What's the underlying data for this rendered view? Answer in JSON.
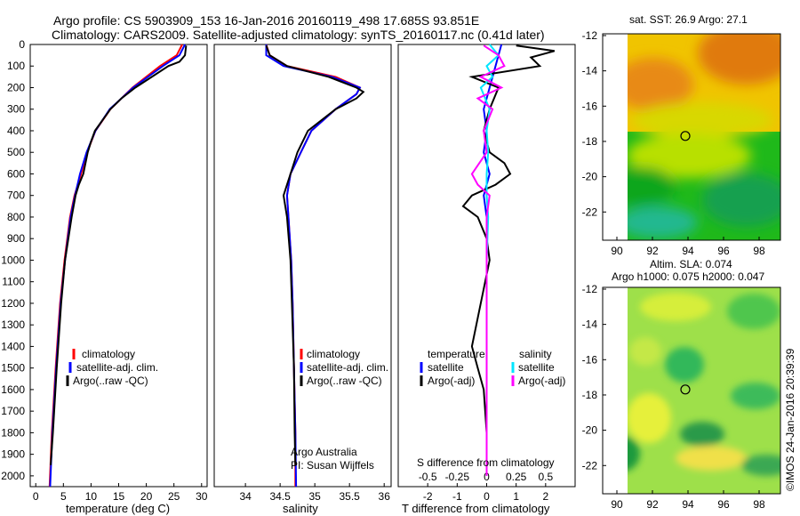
{
  "header": {
    "line1": "Argo profile: CS 5903909_153 16-Jan-2016 20160119_498 17.685S 93.851E",
    "line2": "Climatology: CARS2009. Satellite-adjusted climatology: synTS_20160117.nc (0.41d later)"
  },
  "colors": {
    "climatology": "#ff0000",
    "satellite": "#0000ff",
    "argo": "#000000",
    "sal_satellite": "#00e5ff",
    "sal_argo": "#ff00ff"
  },
  "depth_axis": {
    "min": 0,
    "max": 2050,
    "ticks": [
      0,
      100,
      200,
      300,
      400,
      500,
      600,
      700,
      800,
      900,
      1000,
      1100,
      1200,
      1300,
      1400,
      1500,
      1600,
      1700,
      1800,
      1900,
      2000
    ]
  },
  "legend_profiles": [
    "climatology",
    "satellite-adj. clim.",
    "Argo(..raw -QC)"
  ],
  "legend_diff": {
    "head_t": "temperature",
    "head_s": "salinity",
    "satellite": "satellite",
    "argo": "Argo(-adj)"
  },
  "salinity_note": {
    "line1": "Argo Australia",
    "line2": "PI: Susan Wijffels"
  },
  "chart_data": [
    {
      "type": "line",
      "xlabel": "temperature (deg C)",
      "xlim": [
        -1,
        31
      ],
      "xticks": [
        0,
        5,
        10,
        15,
        20,
        25,
        30
      ],
      "ylim": [
        2050,
        0
      ],
      "series": [
        {
          "name": "climatology",
          "depth": [
            0,
            50,
            100,
            200,
            300,
            400,
            500,
            600,
            700,
            800,
            1000,
            1200,
            1500,
            1800,
            2050
          ],
          "values": [
            26.5,
            25.5,
            22.5,
            17.5,
            13.5,
            10.8,
            9.3,
            8.2,
            7.0,
            6.2,
            5.2,
            4.4,
            3.6,
            2.9,
            2.5
          ]
        },
        {
          "name": "satellite-adj. clim.",
          "depth": [
            0,
            50,
            100,
            200,
            300,
            400,
            500,
            600,
            700,
            800,
            1000,
            1200,
            1500,
            1800,
            2050
          ],
          "values": [
            27.0,
            26.0,
            23.0,
            17.6,
            13.4,
            10.8,
            9.2,
            8.0,
            7.1,
            6.3,
            5.3,
            4.5,
            3.7,
            3.0,
            2.6
          ]
        },
        {
          "name": "Argo(..raw -QC)",
          "depth": [
            5,
            50,
            80,
            100,
            150,
            200,
            250,
            300,
            400,
            450,
            500,
            550,
            600,
            650,
            700,
            800,
            1000,
            1200,
            1500,
            1800,
            1950
          ],
          "values": [
            27.2,
            27.0,
            26.0,
            24.0,
            21.0,
            18.0,
            15.5,
            13.5,
            10.7,
            10.0,
            9.4,
            9.0,
            8.6,
            7.8,
            7.2,
            6.5,
            5.3,
            4.6,
            3.8,
            3.1,
            2.7
          ]
        }
      ]
    },
    {
      "type": "line",
      "xlabel": "salinity",
      "xlim": [
        33.55,
        36.1
      ],
      "xticks": [
        34,
        34.5,
        35,
        35.5,
        36
      ],
      "ylim": [
        2050,
        0
      ],
      "series": [
        {
          "name": "climatology",
          "depth": [
            0,
            50,
            100,
            150,
            200,
            230,
            300,
            400,
            500,
            600,
            700,
            800,
            1000,
            1200,
            1500,
            1800,
            2050
          ],
          "values": [
            34.3,
            34.35,
            34.6,
            35.3,
            35.65,
            35.6,
            35.3,
            34.95,
            34.8,
            34.65,
            34.6,
            34.62,
            34.66,
            34.68,
            34.7,
            34.72,
            34.72
          ]
        },
        {
          "name": "satellite-adj. clim.",
          "depth": [
            0,
            50,
            100,
            150,
            200,
            230,
            300,
            400,
            500,
            600,
            700,
            800,
            1000,
            1200,
            1500,
            1800,
            2050
          ],
          "values": [
            34.3,
            34.3,
            34.55,
            35.25,
            35.65,
            35.6,
            35.3,
            34.95,
            34.8,
            34.65,
            34.6,
            34.62,
            34.66,
            34.68,
            34.7,
            34.72,
            34.73
          ]
        },
        {
          "name": "Argo(..raw -QC)",
          "depth": [
            5,
            50,
            100,
            150,
            200,
            220,
            250,
            300,
            400,
            500,
            600,
            650,
            700,
            800,
            1000,
            1200,
            1500,
            1800,
            1950
          ],
          "values": [
            34.3,
            34.35,
            34.6,
            35.2,
            35.6,
            35.7,
            35.6,
            35.3,
            34.9,
            34.75,
            34.65,
            34.6,
            34.55,
            34.6,
            34.65,
            34.67,
            34.7,
            34.71,
            34.72
          ]
        }
      ]
    },
    {
      "type": "line",
      "xlabel": "T difference from climatology",
      "xlabel_top": "S difference from climatology",
      "xlim": [
        -3,
        3
      ],
      "xticks": [
        -2,
        -1,
        0,
        1,
        2
      ],
      "xticks_top": [
        -0.5,
        -0.25,
        0,
        0.25,
        0.5
      ],
      "ylim": [
        2050,
        0
      ],
      "series": [
        {
          "name": "temperature satellite",
          "depth": [
            0,
            50,
            100,
            200,
            300,
            400,
            500,
            600,
            700,
            800,
            1000,
            1400,
            2000
          ],
          "values": [
            0.5,
            0.4,
            0.3,
            0.1,
            -0.1,
            0.0,
            -0.1,
            0.1,
            -0.1,
            0.0,
            0.0,
            0.0,
            0.0
          ]
        },
        {
          "name": "temperature Argo(-adj)",
          "depth": [
            5,
            30,
            60,
            100,
            150,
            200,
            300,
            400,
            500,
            550,
            600,
            650,
            700,
            750,
            800,
            900,
            1000,
            1400,
            1500,
            1600,
            1800,
            1950
          ],
          "values": [
            1.0,
            2.3,
            1.5,
            1.8,
            -0.5,
            0.4,
            0.1,
            -0.1,
            0.1,
            0.6,
            0.8,
            0.3,
            -0.5,
            -0.8,
            -0.3,
            0.0,
            0.1,
            -0.5,
            -0.3,
            -0.1,
            0.0,
            0.0
          ]
        },
        {
          "name": "salinity satellite",
          "depth": [
            0,
            50,
            100,
            150,
            200,
            300,
            400,
            500,
            600,
            700,
            800,
            1000,
            1400,
            2000
          ],
          "values": [
            0.1,
            0.4,
            0.0,
            0.2,
            -0.2,
            0.1,
            0.0,
            0.05,
            0.0,
            0.0,
            0.05,
            0.0,
            0.0,
            0.0
          ]
        },
        {
          "name": "salinity Argo(-adj)",
          "depth": [
            5,
            50,
            100,
            150,
            200,
            250,
            300,
            400,
            500,
            600,
            650,
            700,
            800,
            1000,
            1400,
            2000
          ],
          "values": [
            -0.1,
            0.4,
            0.6,
            -0.2,
            0.5,
            -0.3,
            0.2,
            -0.1,
            0.0,
            -0.5,
            -0.3,
            0.1,
            0.0,
            0.0,
            0.0,
            0.0
          ]
        }
      ]
    },
    {
      "type": "heatmap",
      "title": "sat. SST: 26.9  Argo: 27.1",
      "xlim": [
        89.2,
        99.2
      ],
      "ylim": [
        -23.6,
        -11.9
      ],
      "xticks": [
        90,
        92,
        94,
        96,
        98
      ],
      "yticks": [
        -12,
        -14,
        -16,
        -18,
        -20,
        -22
      ],
      "marker": [
        93.85,
        -17.69
      ]
    },
    {
      "type": "heatmap",
      "title": "Altim. SLA: 0.074",
      "subtitle": "Argo h1000: 0.075 h2000: 0.047",
      "xlim": [
        89.2,
        99.2
      ],
      "ylim": [
        -23.6,
        -11.9
      ],
      "xticks": [
        90,
        92,
        94,
        96,
        98
      ],
      "yticks": [
        -12,
        -14,
        -16,
        -18,
        -20,
        -22
      ],
      "marker": [
        93.85,
        -17.69
      ]
    }
  ],
  "timestamp": "©IMOS 24-Jan-2016 20:39:39"
}
